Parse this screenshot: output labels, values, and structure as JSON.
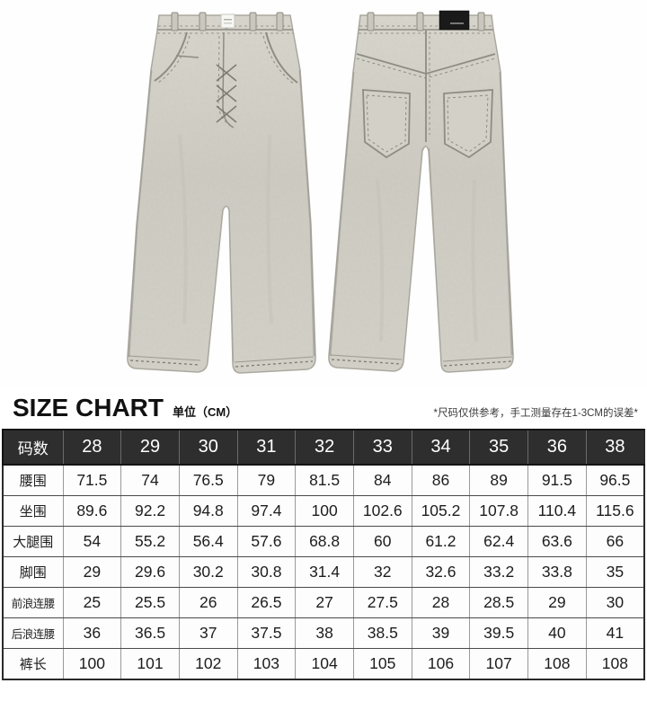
{
  "product_photo": {
    "description_views": [
      "front",
      "back"
    ],
    "denim_color": "#cfcdc4",
    "denim_seam_color": "#8d8b81",
    "back_patch_color": "#1a1a1a",
    "front_tag_color": "#f7f7f4"
  },
  "size_chart": {
    "title": "SIZE CHART",
    "unit": "单位（CM）",
    "note": "*尺码仅供参考，手工测量存在1-3CM的误差*",
    "columns": [
      "码数",
      "28",
      "29",
      "30",
      "31",
      "32",
      "33",
      "34",
      "35",
      "36",
      "38"
    ],
    "rows": [
      {
        "label": "腰围",
        "values": [
          "71.5",
          "74",
          "76.5",
          "79",
          "81.5",
          "84",
          "86",
          "89",
          "91.5",
          "96.5"
        ]
      },
      {
        "label": "坐围",
        "values": [
          "89.6",
          "92.2",
          "94.8",
          "97.4",
          "100",
          "102.6",
          "105.2",
          "107.8",
          "110.4",
          "115.6"
        ]
      },
      {
        "label": "大腿围",
        "values": [
          "54",
          "55.2",
          "56.4",
          "57.6",
          "68.8",
          "60",
          "61.2",
          "62.4",
          "63.6",
          "66"
        ]
      },
      {
        "label": "脚围",
        "values": [
          "29",
          "29.6",
          "30.2",
          "30.8",
          "31.4",
          "32",
          "32.6",
          "33.2",
          "33.8",
          "35"
        ]
      },
      {
        "label": "前浪连腰",
        "values": [
          "25",
          "25.5",
          "26",
          "26.5",
          "27",
          "27.5",
          "28",
          "28.5",
          "29",
          "30"
        ]
      },
      {
        "label": "后浪连腰",
        "values": [
          "36",
          "36.5",
          "37",
          "37.5",
          "38",
          "38.5",
          "39",
          "39.5",
          "40",
          "41"
        ]
      },
      {
        "label": "裤长",
        "values": [
          "100",
          "101",
          "102",
          "103",
          "104",
          "105",
          "106",
          "107",
          "108",
          "108"
        ]
      }
    ]
  },
  "colors": {
    "table_header_bg": "#2e2e2e",
    "table_header_text": "#ffffff",
    "table_border_dark": "#2a2a2a",
    "table_border_light": "#9a9a9a",
    "page_bg": "#ffffff"
  }
}
